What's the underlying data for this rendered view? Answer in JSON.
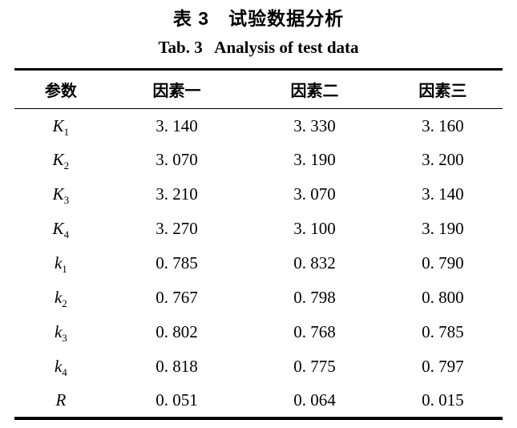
{
  "titles": {
    "zh": "表 3　试验数据分析",
    "en": "Tab. 3   Analysis of test data"
  },
  "table": {
    "headers": {
      "param": "参数",
      "factor1": "因素一",
      "factor2": "因素二",
      "factor3": "因素三"
    },
    "rows": [
      {
        "param": "K",
        "sub": "1",
        "values": [
          "3. 140",
          "3. 330",
          "3. 160"
        ]
      },
      {
        "param": "K",
        "sub": "2",
        "values": [
          "3. 070",
          "3. 190",
          "3. 200"
        ]
      },
      {
        "param": "K",
        "sub": "3",
        "values": [
          "3. 210",
          "3. 070",
          "3. 140"
        ]
      },
      {
        "param": "K",
        "sub": "4",
        "values": [
          "3. 270",
          "3. 100",
          "3. 190"
        ]
      },
      {
        "param": "k",
        "sub": "1",
        "values": [
          "0. 785",
          "0. 832",
          "0. 790"
        ]
      },
      {
        "param": "k",
        "sub": "2",
        "values": [
          "0. 767",
          "0. 798",
          "0. 800"
        ]
      },
      {
        "param": "k",
        "sub": "3",
        "values": [
          "0. 802",
          "0. 768",
          "0. 785"
        ]
      },
      {
        "param": "k",
        "sub": "4",
        "values": [
          "0. 818",
          "0. 775",
          "0. 797"
        ]
      },
      {
        "param": "R",
        "sub": "",
        "values": [
          "0. 051",
          "0. 064",
          "0. 015"
        ]
      }
    ]
  },
  "colors": {
    "text": "#000000",
    "background": "#ffffff",
    "rule": "#000000"
  }
}
